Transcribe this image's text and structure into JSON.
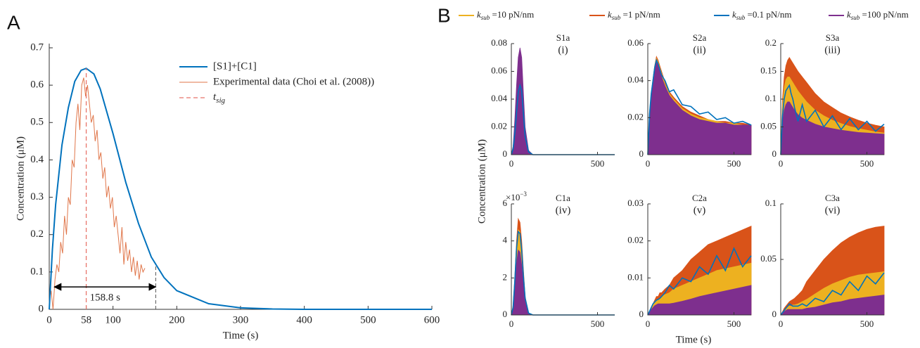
{
  "panel_labels": [
    "A",
    "B"
  ],
  "panel_b": {
    "ylabel": "Concentration (μM)",
    "xlabel": "Time (s)",
    "legend": [
      {
        "symbol": "k",
        "sub": "sub",
        "label": " =10 pN/nm",
        "color": "#EDB120",
        "style": "area"
      },
      {
        "symbol": "k",
        "sub": "sub",
        "label": " =1 pN/nm",
        "color": "#D95319",
        "style": "area"
      },
      {
        "symbol": "k",
        "sub": "sub",
        "label": " =0.1 pN/nm",
        "color": "#0072BD",
        "style": "line"
      },
      {
        "symbol": "k",
        "sub": "sub",
        "label": " =100 pN/nm",
        "color": "#7E2F8E",
        "style": "area"
      }
    ]
  },
  "chart_data": [
    {
      "type": "line",
      "xlabel": "Time (s)",
      "ylabel": "Concentration (μM)",
      "xlim": [
        0,
        600
      ],
      "ylim": [
        0,
        0.7
      ],
      "xticks": [
        0,
        58,
        100,
        200,
        300,
        400,
        500,
        600
      ],
      "yticks": [
        0,
        0.1,
        0.2,
        0.3,
        0.4,
        0.5,
        0.6,
        0.7
      ],
      "series": [
        {
          "name": "[S1]+[C1]",
          "color": "#0072BD",
          "x": [
            0,
            5,
            10,
            20,
            30,
            40,
            50,
            58,
            70,
            80,
            100,
            120,
            140,
            160,
            180,
            200,
            250,
            300,
            350,
            400,
            450,
            500,
            550,
            600
          ],
          "values": [
            0,
            0.16,
            0.28,
            0.44,
            0.54,
            0.61,
            0.64,
            0.645,
            0.63,
            0.59,
            0.47,
            0.34,
            0.23,
            0.14,
            0.085,
            0.05,
            0.015,
            0.004,
            0.001,
            0,
            0,
            0,
            0,
            0
          ]
        },
        {
          "name": "Experimental data (Choi et al. (2008))",
          "color": "#E0764A",
          "x": [
            0,
            3,
            6,
            9,
            12,
            15,
            18,
            21,
            24,
            27,
            30,
            33,
            36,
            39,
            42,
            45,
            48,
            51,
            54,
            57,
            60,
            63,
            66,
            69,
            72,
            75,
            78,
            81,
            84,
            87,
            90,
            93,
            96,
            99,
            102,
            105,
            108,
            111,
            114,
            117,
            120,
            123,
            126,
            129,
            132,
            135,
            138,
            141,
            144,
            147,
            150
          ],
          "values": [
            0.02,
            0.05,
            0.0,
            0.08,
            0.12,
            0.1,
            0.18,
            0.15,
            0.25,
            0.2,
            0.3,
            0.28,
            0.4,
            0.38,
            0.5,
            0.55,
            0.48,
            0.6,
            0.62,
            0.57,
            0.6,
            0.55,
            0.5,
            0.52,
            0.45,
            0.48,
            0.4,
            0.42,
            0.35,
            0.38,
            0.3,
            0.33,
            0.27,
            0.3,
            0.22,
            0.25,
            0.2,
            0.15,
            0.22,
            0.12,
            0.18,
            0.13,
            0.16,
            0.1,
            0.14,
            0.09,
            0.13,
            0.08,
            0.12,
            0.1,
            0.11
          ]
        }
      ],
      "marker_line": {
        "x": 58,
        "color": "#E8756A",
        "symbol": "t",
        "sub": "sig"
      },
      "annotation": {
        "text": "158.8 s",
        "from": 8,
        "to": 167,
        "y": 0.06
      }
    },
    {
      "type": "area",
      "title": "S1a",
      "subtitle": "(i)",
      "x": [
        0,
        10,
        20,
        30,
        40,
        50,
        60,
        70,
        80,
        100,
        125,
        150,
        200,
        250,
        300,
        350,
        400,
        450,
        500,
        550,
        600
      ],
      "xlim": [
        0,
        600
      ],
      "ylim": [
        0,
        0.08
      ],
      "xticks": [
        0,
        500
      ],
      "yticks": [
        0,
        0.02,
        0.04,
        0.06,
        0.08
      ],
      "series": [
        {
          "values": [
            0,
            0.005,
            0.02,
            0.04,
            0.055,
            0.06,
            0.055,
            0.035,
            0.015,
            0.002,
            0,
            0,
            0,
            0,
            0,
            0,
            0,
            0,
            0,
            0,
            0
          ]
        },
        {
          "values": [
            0,
            0.004,
            0.015,
            0.03,
            0.045,
            0.05,
            0.045,
            0.03,
            0.012,
            0.002,
            0,
            0,
            0,
            0,
            0,
            0,
            0,
            0,
            0,
            0,
            0
          ]
        },
        {
          "values": [
            0,
            0.004,
            0.015,
            0.03,
            0.045,
            0.05,
            0.046,
            0.03,
            0.013,
            0.002,
            0,
            0,
            0,
            0,
            0,
            0,
            0,
            0,
            0,
            0,
            0
          ]
        },
        {
          "values": [
            0,
            0.006,
            0.025,
            0.05,
            0.07,
            0.077,
            0.07,
            0.045,
            0.02,
            0.003,
            0,
            0,
            0,
            0,
            0,
            0,
            0,
            0,
            0,
            0,
            0
          ]
        }
      ]
    },
    {
      "type": "area",
      "title": "S2a",
      "subtitle": "(ii)",
      "x": [
        0,
        10,
        20,
        30,
        40,
        50,
        60,
        70,
        80,
        100,
        125,
        150,
        200,
        250,
        300,
        350,
        400,
        450,
        500,
        550,
        600
      ],
      "xlim": [
        0,
        600
      ],
      "ylim": [
        0,
        0.06
      ],
      "xticks": [
        0,
        500
      ],
      "yticks": [
        0,
        0.02,
        0.04,
        0.06
      ],
      "series": [
        {
          "values": [
            0,
            0.022,
            0.032,
            0.04,
            0.047,
            0.052,
            0.05,
            0.047,
            0.044,
            0.038,
            0.033,
            0.03,
            0.025,
            0.022,
            0.02,
            0.019,
            0.018,
            0.017,
            0.017,
            0.016,
            0.016
          ]
        },
        {
          "values": [
            0,
            0.023,
            0.033,
            0.041,
            0.048,
            0.053,
            0.051,
            0.048,
            0.045,
            0.039,
            0.034,
            0.031,
            0.026,
            0.023,
            0.021,
            0.019,
            0.018,
            0.018,
            0.017,
            0.017,
            0.016
          ]
        },
        {
          "values": [
            0,
            0.022,
            0.033,
            0.04,
            0.047,
            0.051,
            0.049,
            0.046,
            0.043,
            0.04,
            0.034,
            0.035,
            0.027,
            0.026,
            0.022,
            0.023,
            0.019,
            0.02,
            0.017,
            0.018,
            0.016
          ]
        },
        {
          "values": [
            0,
            0.02,
            0.03,
            0.038,
            0.045,
            0.05,
            0.048,
            0.045,
            0.042,
            0.037,
            0.032,
            0.029,
            0.024,
            0.021,
            0.019,
            0.018,
            0.017,
            0.017,
            0.016,
            0.016,
            0.016
          ]
        }
      ]
    },
    {
      "type": "area",
      "title": "S3a",
      "subtitle": "(iii)",
      "x": [
        0,
        10,
        20,
        30,
        40,
        50,
        60,
        70,
        80,
        100,
        125,
        150,
        200,
        250,
        300,
        350,
        400,
        450,
        500,
        550,
        600
      ],
      "xlim": [
        0,
        600
      ],
      "ylim": [
        0,
        0.2
      ],
      "xticks": [
        0,
        500
      ],
      "yticks": [
        0,
        0.05,
        0.1,
        0.15,
        0.2
      ],
      "series": [
        {
          "values": [
            0,
            0.09,
            0.12,
            0.135,
            0.14,
            0.14,
            0.135,
            0.13,
            0.125,
            0.115,
            0.105,
            0.095,
            0.08,
            0.07,
            0.062,
            0.056,
            0.051,
            0.047,
            0.044,
            0.041,
            0.039
          ]
        },
        {
          "values": [
            0,
            0.1,
            0.14,
            0.16,
            0.17,
            0.175,
            0.17,
            0.165,
            0.16,
            0.15,
            0.14,
            0.13,
            0.11,
            0.095,
            0.085,
            0.075,
            0.068,
            0.062,
            0.057,
            0.053,
            0.05
          ]
        },
        {
          "values": [
            0,
            0.07,
            0.1,
            0.115,
            0.12,
            0.125,
            0.11,
            0.1,
            0.085,
            0.06,
            0.09,
            0.06,
            0.08,
            0.05,
            0.07,
            0.045,
            0.065,
            0.045,
            0.06,
            0.042,
            0.055
          ]
        },
        {
          "values": [
            0,
            0.06,
            0.08,
            0.09,
            0.095,
            0.095,
            0.09,
            0.085,
            0.08,
            0.072,
            0.066,
            0.062,
            0.055,
            0.05,
            0.047,
            0.044,
            0.042,
            0.04,
            0.039,
            0.038,
            0.037
          ]
        }
      ]
    },
    {
      "type": "area",
      "title": "C1a",
      "subtitle": "(iv)",
      "multiplier": {
        "base": "×10",
        "exponent": "−3"
      },
      "x": [
        0,
        10,
        20,
        30,
        40,
        50,
        60,
        70,
        80,
        100,
        125,
        150,
        200,
        250,
        300,
        350,
        400,
        450,
        500,
        550,
        600
      ],
      "xlim": [
        0,
        600
      ],
      "ylim": [
        0,
        6
      ],
      "xticks": [
        0,
        500
      ],
      "yticks": [
        0,
        2,
        4,
        6
      ],
      "series": [
        {
          "values": [
            0,
            0.4,
            1.8,
            3.6,
            4.6,
            4.5,
            3.6,
            2.2,
            0.9,
            0.1,
            0,
            0,
            0,
            0,
            0,
            0,
            0,
            0,
            0,
            0,
            0
          ]
        },
        {
          "values": [
            0,
            0.5,
            2,
            4,
            5.2,
            5,
            4,
            2.5,
            1,
            0.1,
            0,
            0,
            0,
            0,
            0,
            0,
            0,
            0,
            0,
            0,
            0
          ]
        },
        {
          "values": [
            0,
            0.4,
            1.8,
            3.6,
            4.5,
            4.4,
            3.5,
            2.1,
            0.9,
            0.1,
            0,
            0,
            0,
            0,
            0,
            0,
            0,
            0,
            0,
            0,
            0
          ]
        },
        {
          "values": [
            0,
            0.3,
            1.4,
            2.8,
            3.5,
            3.4,
            2.7,
            1.7,
            0.7,
            0.05,
            0,
            0,
            0,
            0,
            0,
            0,
            0,
            0,
            0,
            0,
            0
          ]
        }
      ]
    },
    {
      "type": "area",
      "title": "C2a",
      "subtitle": "(v)",
      "x": [
        0,
        10,
        20,
        30,
        40,
        50,
        60,
        70,
        80,
        100,
        125,
        150,
        200,
        250,
        300,
        350,
        400,
        450,
        500,
        550,
        600
      ],
      "xlim": [
        0,
        600
      ],
      "ylim": [
        0,
        0.03
      ],
      "xticks": [
        0,
        500
      ],
      "yticks": [
        0,
        0.01,
        0.02,
        0.03
      ],
      "series": [
        {
          "values": [
            0,
            0.001,
            0.002,
            0.003,
            0.0035,
            0.004,
            0.004,
            0.0045,
            0.005,
            0.0055,
            0.006,
            0.007,
            0.008,
            0.009,
            0.01,
            0.011,
            0.012,
            0.0125,
            0.013,
            0.0135,
            0.014
          ]
        },
        {
          "values": [
            0,
            0.001,
            0.002,
            0.003,
            0.004,
            0.005,
            0.005,
            0.006,
            0.006,
            0.007,
            0.008,
            0.01,
            0.012,
            0.015,
            0.017,
            0.019,
            0.02,
            0.021,
            0.022,
            0.023,
            0.024
          ]
        },
        {
          "values": [
            0,
            0.001,
            0.002,
            0.003,
            0.0035,
            0.004,
            0.0042,
            0.0045,
            0.005,
            0.006,
            0.008,
            0.007,
            0.01,
            0.009,
            0.013,
            0.011,
            0.016,
            0.012,
            0.018,
            0.013,
            0.016
          ]
        },
        {
          "values": [
            0,
            0.001,
            0.0015,
            0.002,
            0.0025,
            0.0028,
            0.003,
            0.003,
            0.003,
            0.003,
            0.003,
            0.0032,
            0.0037,
            0.0043,
            0.005,
            0.0055,
            0.006,
            0.0065,
            0.007,
            0.0075,
            0.008
          ]
        }
      ]
    },
    {
      "type": "area",
      "title": "C3a",
      "subtitle": "(vi)",
      "x": [
        0,
        10,
        20,
        30,
        40,
        50,
        60,
        70,
        80,
        100,
        125,
        150,
        200,
        250,
        300,
        350,
        400,
        450,
        500,
        550,
        600
      ],
      "xlim": [
        0,
        600
      ],
      "ylim": [
        0,
        0.1
      ],
      "xticks": [
        0,
        500
      ],
      "yticks": [
        0,
        0.05,
        0.1
      ],
      "series": [
        {
          "values": [
            0,
            0.002,
            0.004,
            0.006,
            0.007,
            0.008,
            0.008,
            0.009,
            0.009,
            0.01,
            0.012,
            0.014,
            0.019,
            0.024,
            0.028,
            0.031,
            0.034,
            0.036,
            0.037,
            0.038,
            0.039
          ]
        },
        {
          "values": [
            0,
            0.003,
            0.006,
            0.008,
            0.01,
            0.012,
            0.013,
            0.014,
            0.015,
            0.018,
            0.022,
            0.03,
            0.04,
            0.05,
            0.058,
            0.065,
            0.07,
            0.074,
            0.077,
            0.079,
            0.08
          ]
        },
        {
          "values": [
            0,
            0.002,
            0.004,
            0.006,
            0.008,
            0.01,
            0.009,
            0.008,
            0.008,
            0.008,
            0.01,
            0.008,
            0.015,
            0.012,
            0.022,
            0.018,
            0.03,
            0.022,
            0.035,
            0.028,
            0.038
          ]
        },
        {
          "values": [
            0,
            0.002,
            0.003,
            0.004,
            0.005,
            0.005,
            0.005,
            0.005,
            0.005,
            0.005,
            0.005,
            0.006,
            0.007,
            0.009,
            0.011,
            0.012,
            0.014,
            0.015,
            0.016,
            0.017,
            0.018
          ]
        }
      ]
    }
  ]
}
